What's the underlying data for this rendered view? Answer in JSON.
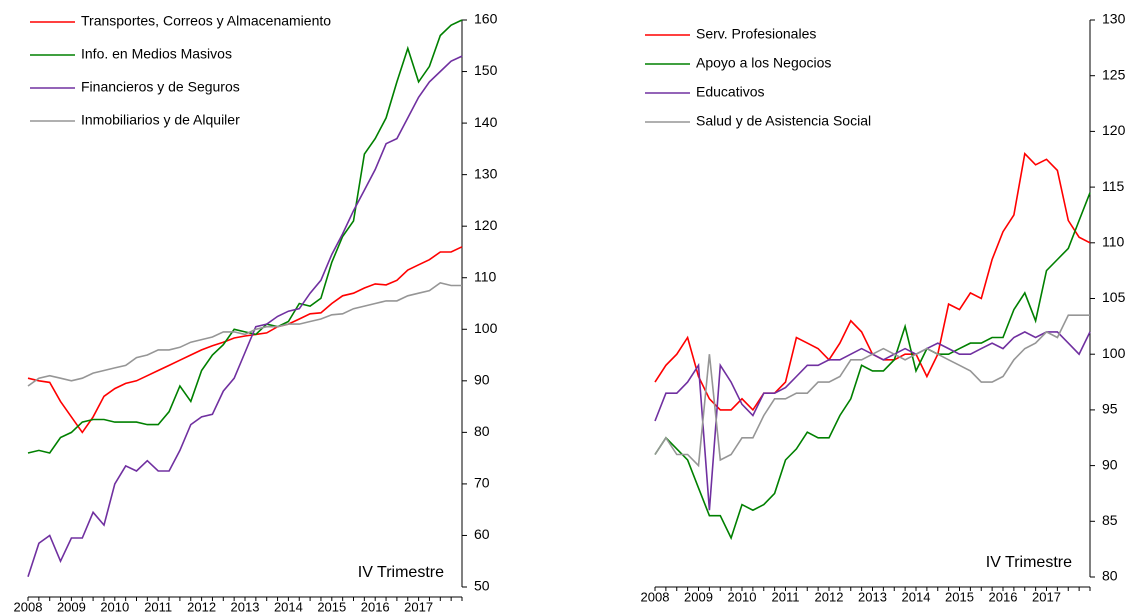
{
  "chart_data": [
    {
      "type": "line",
      "categories": [
        "2008",
        null,
        null,
        null,
        "2009",
        null,
        null,
        null,
        "2010",
        null,
        null,
        null,
        "2011",
        null,
        null,
        null,
        "2012",
        null,
        null,
        null,
        "2013",
        null,
        null,
        null,
        "2014",
        null,
        null,
        null,
        "2015",
        null,
        null,
        null,
        "2016",
        null,
        null,
        null,
        "2017",
        null,
        null,
        null,
        null
      ],
      "series": [
        {
          "name": "Transportes, Correos y Almacenamiento",
          "color": "#ff0000",
          "values": [
            90.5,
            90,
            89.7,
            86,
            83,
            80,
            83,
            87,
            88.5,
            89.5,
            90,
            91,
            92,
            93,
            94,
            95,
            96,
            96.8,
            97.5,
            98.3,
            98.7,
            99,
            99.3,
            100.5,
            101,
            102,
            103,
            103.2,
            105,
            106.5,
            107,
            108,
            108.8,
            108.6,
            109.5,
            111.5,
            112.5,
            113.5,
            115,
            115,
            116
          ]
        },
        {
          "name": "Info. en Medios Masivos",
          "color": "#008000",
          "values": [
            76,
            76.5,
            76,
            79,
            80,
            82,
            82.5,
            82.5,
            82,
            82,
            82,
            81.5,
            81.5,
            84,
            89,
            86,
            92,
            95,
            97,
            100,
            99.5,
            99,
            101,
            100.5,
            101.5,
            105,
            104.5,
            106,
            113,
            118,
            121,
            134,
            137,
            141,
            148,
            154.5,
            148,
            151,
            157,
            159,
            160
          ]
        },
        {
          "name": "Financieros y de Seguros",
          "color": "#7030a0",
          "values": [
            52,
            58.5,
            60,
            55,
            59.5,
            59.5,
            64.5,
            62,
            70,
            73.5,
            72.5,
            74.5,
            72.5,
            72.5,
            76.5,
            81.5,
            83,
            83.5,
            88,
            90.5,
            95.5,
            100.5,
            101,
            102.5,
            103.5,
            104,
            107,
            109.5,
            114.5,
            118.5,
            123,
            127,
            131,
            136,
            137,
            141,
            145,
            148,
            150,
            152,
            153
          ]
        },
        {
          "name": "Inmobiliarios y de Alquiler",
          "color": "#969696",
          "values": [
            89,
            90.5,
            91,
            90.5,
            90,
            90.5,
            91.5,
            92,
            92.5,
            93,
            94.5,
            95,
            96,
            96,
            96.5,
            97.5,
            98,
            98.5,
            99.5,
            99.5,
            99,
            100,
            100.5,
            100.5,
            101,
            101,
            101.5,
            102,
            102.8,
            103,
            104,
            104.5,
            105,
            105.5,
            105.5,
            106.5,
            107,
            107.5,
            109,
            108.5,
            108.5
          ]
        }
      ],
      "annotation": "IV Trimestre",
      "ylim": [
        50,
        160
      ],
      "yticks": [
        50,
        60,
        70,
        80,
        90,
        100,
        110,
        120,
        130,
        140,
        150,
        160
      ],
      "y_axis_side": "right",
      "legend": "upper left"
    },
    {
      "type": "line",
      "categories": [
        "2008",
        null,
        null,
        null,
        "2009",
        null,
        null,
        null,
        "2010",
        null,
        null,
        null,
        "2011",
        null,
        null,
        null,
        "2012",
        null,
        null,
        null,
        "2013",
        null,
        null,
        null,
        "2014",
        null,
        null,
        null,
        "2015",
        null,
        null,
        null,
        "2016",
        null,
        null,
        null,
        "2017",
        null,
        null,
        null,
        null
      ],
      "series": [
        {
          "name": "Serv. Profesionales",
          "color": "#ff0000",
          "values": [
            97.5,
            99,
            100,
            101.5,
            98,
            96,
            95,
            95,
            96,
            95,
            96.5,
            96.5,
            97.5,
            101.5,
            101,
            100.5,
            99.5,
            101,
            103,
            102,
            100,
            99.5,
            99.5,
            100,
            100,
            98,
            100,
            104.5,
            104,
            105.5,
            105,
            108.5,
            111,
            112.5,
            118,
            117,
            117.5,
            116.5,
            112,
            110.5,
            110
          ]
        },
        {
          "name": "Apoyo a los Negocios",
          "color": "#008000",
          "values": [
            91,
            92.5,
            91.5,
            90.5,
            88,
            85.5,
            85.5,
            83.5,
            86.5,
            86,
            86.5,
            87.5,
            90.5,
            91.5,
            93,
            92.5,
            92.5,
            94.5,
            96,
            99,
            98.5,
            98.5,
            99.5,
            102.5,
            98.5,
            100.5,
            100,
            100,
            100.5,
            101,
            101,
            101.5,
            101.5,
            104,
            105.5,
            103,
            107.5,
            108.5,
            109.5,
            112,
            114.5
          ]
        },
        {
          "name": "Educativos",
          "color": "#7030a0",
          "values": [
            94,
            96.5,
            96.5,
            97.5,
            99,
            86,
            99,
            97.5,
            95.5,
            94.5,
            96.5,
            96.5,
            97,
            98,
            99,
            99,
            99.5,
            99.5,
            100,
            100.5,
            100,
            99.5,
            100,
            100.5,
            100,
            100.5,
            101,
            100.5,
            100,
            100,
            100.5,
            101,
            100.5,
            101.5,
            102,
            101.5,
            102,
            102,
            101,
            100,
            102
          ]
        },
        {
          "name": "Salud y de Asistencia Social",
          "color": "#969696",
          "values": [
            91,
            92.5,
            91,
            91,
            90,
            100,
            90.5,
            91,
            92.5,
            92.5,
            94.5,
            96,
            96,
            96.5,
            96.5,
            97.5,
            97.5,
            98,
            99.5,
            99.5,
            100,
            100.5,
            100,
            99.5,
            100,
            100.5,
            100,
            99.5,
            99,
            98.5,
            97.5,
            97.5,
            98,
            99.5,
            100.5,
            101,
            102,
            101.5,
            103.5,
            103.5,
            103.5
          ]
        }
      ],
      "annotation": "IV Trimestre",
      "ylim": [
        80,
        130
      ],
      "yticks": [
        80,
        85,
        90,
        95,
        100,
        105,
        110,
        115,
        120,
        125,
        130
      ],
      "y_axis_side": "right",
      "legend": "upper left"
    }
  ]
}
